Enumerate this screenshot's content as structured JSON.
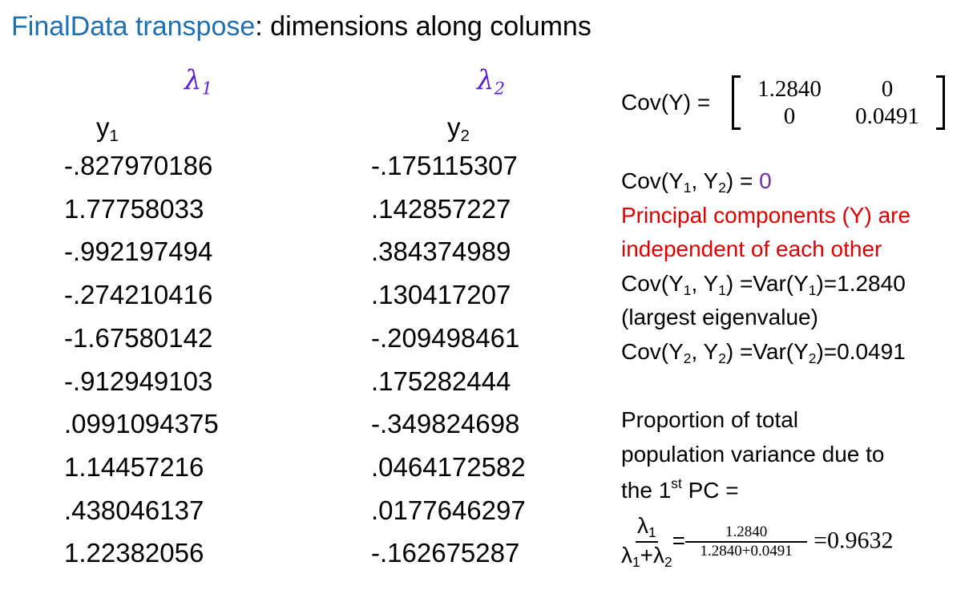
{
  "title": [
    {
      "text": "FinalData transpose",
      "style": "blue"
    },
    {
      "text": ": dimensions along columns"
    }
  ],
  "annotations": [
    [
      {
        "text": "λ"
      },
      {
        "text": "1",
        "style": "sub"
      }
    ],
    [
      {
        "text": "λ"
      },
      {
        "text": "2",
        "style": "sub"
      }
    ]
  ],
  "table": {
    "headers": [
      [
        {
          "text": "y"
        },
        {
          "text": "1",
          "style": "sub"
        }
      ],
      [
        {
          "text": "y"
        },
        {
          "text": "2",
          "style": "sub"
        }
      ]
    ],
    "rows": [
      [
        "-.827970186",
        "-.175115307"
      ],
      [
        "1.77758033",
        ".142857227"
      ],
      [
        "-.992197494",
        ".384374989"
      ],
      [
        "-.274210416",
        ".130417207"
      ],
      [
        "-1.67580142",
        "-.209498461"
      ],
      [
        "-.912949103",
        ".175282444"
      ],
      [
        ".0991094375",
        "-.349824698"
      ],
      [
        "1.14457216",
        ".0464172582"
      ],
      [
        ".438046137",
        ".0177646297"
      ],
      [
        "1.22382056",
        "-.162675287"
      ]
    ]
  },
  "covariance": {
    "label": "Cov(Y) =",
    "matrix": [
      [
        "1.2840",
        "0"
      ],
      [
        "0",
        "0.0491"
      ]
    ]
  },
  "notes": [
    [
      {
        "text": "Cov(Y"
      },
      {
        "text": "1",
        "style": "sub"
      },
      {
        "text": ", Y"
      },
      {
        "text": "2",
        "style": "sub"
      },
      {
        "text": ") = "
      },
      {
        "text": "0",
        "style": "purple"
      }
    ],
    [
      {
        "text": "Principal components (Y) are",
        "style": "red"
      }
    ],
    [
      {
        "text": "independent of each other",
        "style": "red"
      }
    ],
    [
      {
        "text": "Cov(Y"
      },
      {
        "text": "1",
        "style": "sub"
      },
      {
        "text": ", Y"
      },
      {
        "text": "1",
        "style": "sub"
      },
      {
        "text": ") =Var(Y"
      },
      {
        "text": "1",
        "style": "sub"
      },
      {
        "text": ")=1.2840"
      }
    ],
    [
      {
        "text": "(largest eigenvalue)"
      }
    ],
    [
      {
        "text": "Cov(Y"
      },
      {
        "text": "2",
        "style": "sub"
      },
      {
        "text": ", Y"
      },
      {
        "text": "2",
        "style": "sub"
      },
      {
        "text": ") =Var(Y"
      },
      {
        "text": "2",
        "style": "sub"
      },
      {
        "text": ")=0.0491"
      }
    ]
  ],
  "proportion": [
    [
      {
        "text": "Proportion of total"
      }
    ],
    [
      {
        "text": "population variance due to"
      }
    ],
    [
      {
        "text": "the 1"
      },
      {
        "text": "st",
        "style": "sup"
      },
      {
        "text": " PC ="
      }
    ]
  ],
  "formula": {
    "numerator": [
      {
        "text": "λ"
      },
      {
        "text": "1",
        "style": "sub"
      }
    ],
    "denominator": [
      {
        "text": "λ"
      },
      {
        "text": "1",
        "style": "sub"
      },
      {
        "text": "+λ"
      },
      {
        "text": "2",
        "style": "sub"
      }
    ],
    "equals": "=",
    "value_numerator": "1.2840",
    "value_denominator": "1.2840+0.0491",
    "result": "=0.9632"
  }
}
